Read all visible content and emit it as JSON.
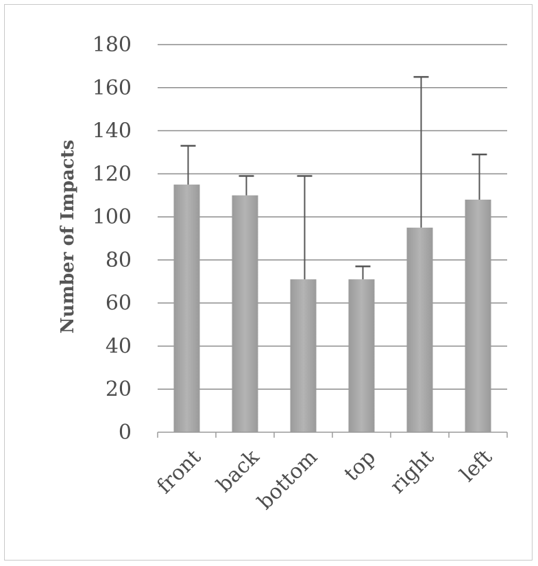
{
  "chart_data": {
    "type": "bar",
    "title": "",
    "xlabel": "",
    "ylabel": "Number of Impacts",
    "ylim": [
      0,
      180
    ],
    "yticks": [
      0,
      20,
      40,
      60,
      80,
      100,
      120,
      140,
      160,
      180
    ],
    "categories": [
      "front",
      "back",
      "bottom",
      "top",
      "right",
      "left"
    ],
    "values": [
      115,
      110,
      71,
      71,
      95,
      108
    ],
    "error_upper": [
      133,
      119,
      119,
      77,
      165,
      129
    ],
    "grid": true,
    "legend": "none",
    "colors": {
      "bar": "#a9a9a9",
      "grid": "#8c8c8c",
      "errorbar": "#555555"
    }
  }
}
